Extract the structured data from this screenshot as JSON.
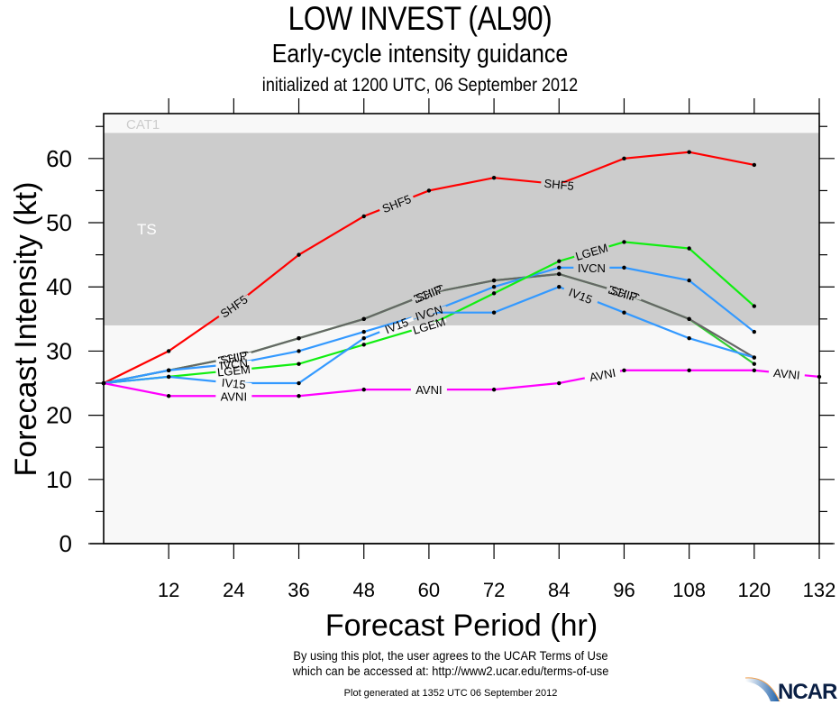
{
  "header": {
    "title": "LOW INVEST (AL90)",
    "subtitle": "Early-cycle intensity guidance",
    "init_line": "initialized at 1200 UTC, 06 September 2012"
  },
  "footer": {
    "terms_line1": "By using this plot, the user agrees to the UCAR Terms of Use",
    "terms_line2": "which can be accessed at: http://www2.ucar.edu/terms-of-use",
    "generated": "Plot generated at 1352 UTC   06 September 2012",
    "logo_text": "NCAR"
  },
  "chart_data": {
    "type": "line",
    "title": "LOW INVEST (AL90)",
    "xlabel": "Forecast Period (hr)",
    "ylabel": "Forecast Intensity (kt)",
    "xlim": [
      0,
      132
    ],
    "ylim": [
      0,
      67
    ],
    "xticks": [
      12,
      24,
      36,
      48,
      60,
      72,
      84,
      96,
      108,
      120,
      132
    ],
    "yticks": [
      0,
      10,
      20,
      30,
      40,
      50,
      60
    ],
    "grid": false,
    "bands": [
      {
        "label": "TS",
        "from": 34,
        "to": 64,
        "color": "#cccccc"
      },
      {
        "label": "CAT1",
        "from": 64,
        "to": 67,
        "color": "#f8f8f8"
      }
    ],
    "background_color": "#f8f8f8",
    "series": [
      {
        "name": "SHF5",
        "color": "#ff0000",
        "x": [
          0,
          12,
          24,
          36,
          48,
          60,
          72,
          84,
          96,
          108,
          120
        ],
        "values": [
          25,
          30,
          37,
          45,
          51,
          55,
          57,
          56,
          60,
          61,
          59
        ],
        "label_at": [
          24,
          54,
          84
        ]
      },
      {
        "name": "DSHP",
        "color": "#33cc33",
        "x": [
          0,
          12,
          24,
          36,
          48,
          60,
          72,
          84,
          96,
          108,
          120
        ],
        "values": [
          25,
          27,
          29,
          32,
          35,
          39,
          41,
          42,
          39,
          35,
          28
        ],
        "label_at": [
          24,
          60,
          96
        ]
      },
      {
        "name": "SHIP",
        "color": "#666666",
        "x": [
          0,
          12,
          24,
          36,
          48,
          60,
          72,
          84,
          96,
          108,
          120
        ],
        "values": [
          25,
          27,
          29,
          32,
          35,
          39,
          41,
          42,
          39,
          35,
          29
        ],
        "label_at": [
          24,
          60,
          96
        ]
      },
      {
        "name": "IVCN",
        "color": "#3399ff",
        "x": [
          0,
          12,
          24,
          36,
          48,
          60,
          72,
          84,
          96,
          108,
          120
        ],
        "values": [
          25,
          27,
          28,
          30,
          33,
          36,
          40,
          43,
          43,
          41,
          33
        ],
        "label_at": [
          24,
          60,
          90
        ]
      },
      {
        "name": "LGEM",
        "color": "#11ee11",
        "x": [
          0,
          12,
          24,
          36,
          48,
          60,
          72,
          84,
          96,
          108,
          120
        ],
        "values": [
          25,
          26,
          27,
          28,
          31,
          34,
          39,
          44,
          47,
          46,
          37
        ],
        "label_at": [
          24,
          60,
          90
        ]
      },
      {
        "name": "IV15",
        "color": "#3399ff",
        "x": [
          0,
          12,
          24,
          36,
          48,
          60,
          72,
          84,
          96,
          108,
          120
        ],
        "values": [
          25,
          26,
          25,
          25,
          32,
          36,
          36,
          40,
          36,
          32,
          29
        ],
        "label_at": [
          24,
          54,
          88
        ]
      },
      {
        "name": "AVNI",
        "color": "#ff00ff",
        "x": [
          0,
          12,
          24,
          36,
          48,
          60,
          72,
          84,
          96,
          108,
          120,
          132
        ],
        "values": [
          25,
          23,
          23,
          23,
          24,
          24,
          24,
          25,
          27,
          27,
          27,
          26
        ],
        "label_at": [
          24,
          60,
          92,
          126
        ]
      }
    ]
  }
}
